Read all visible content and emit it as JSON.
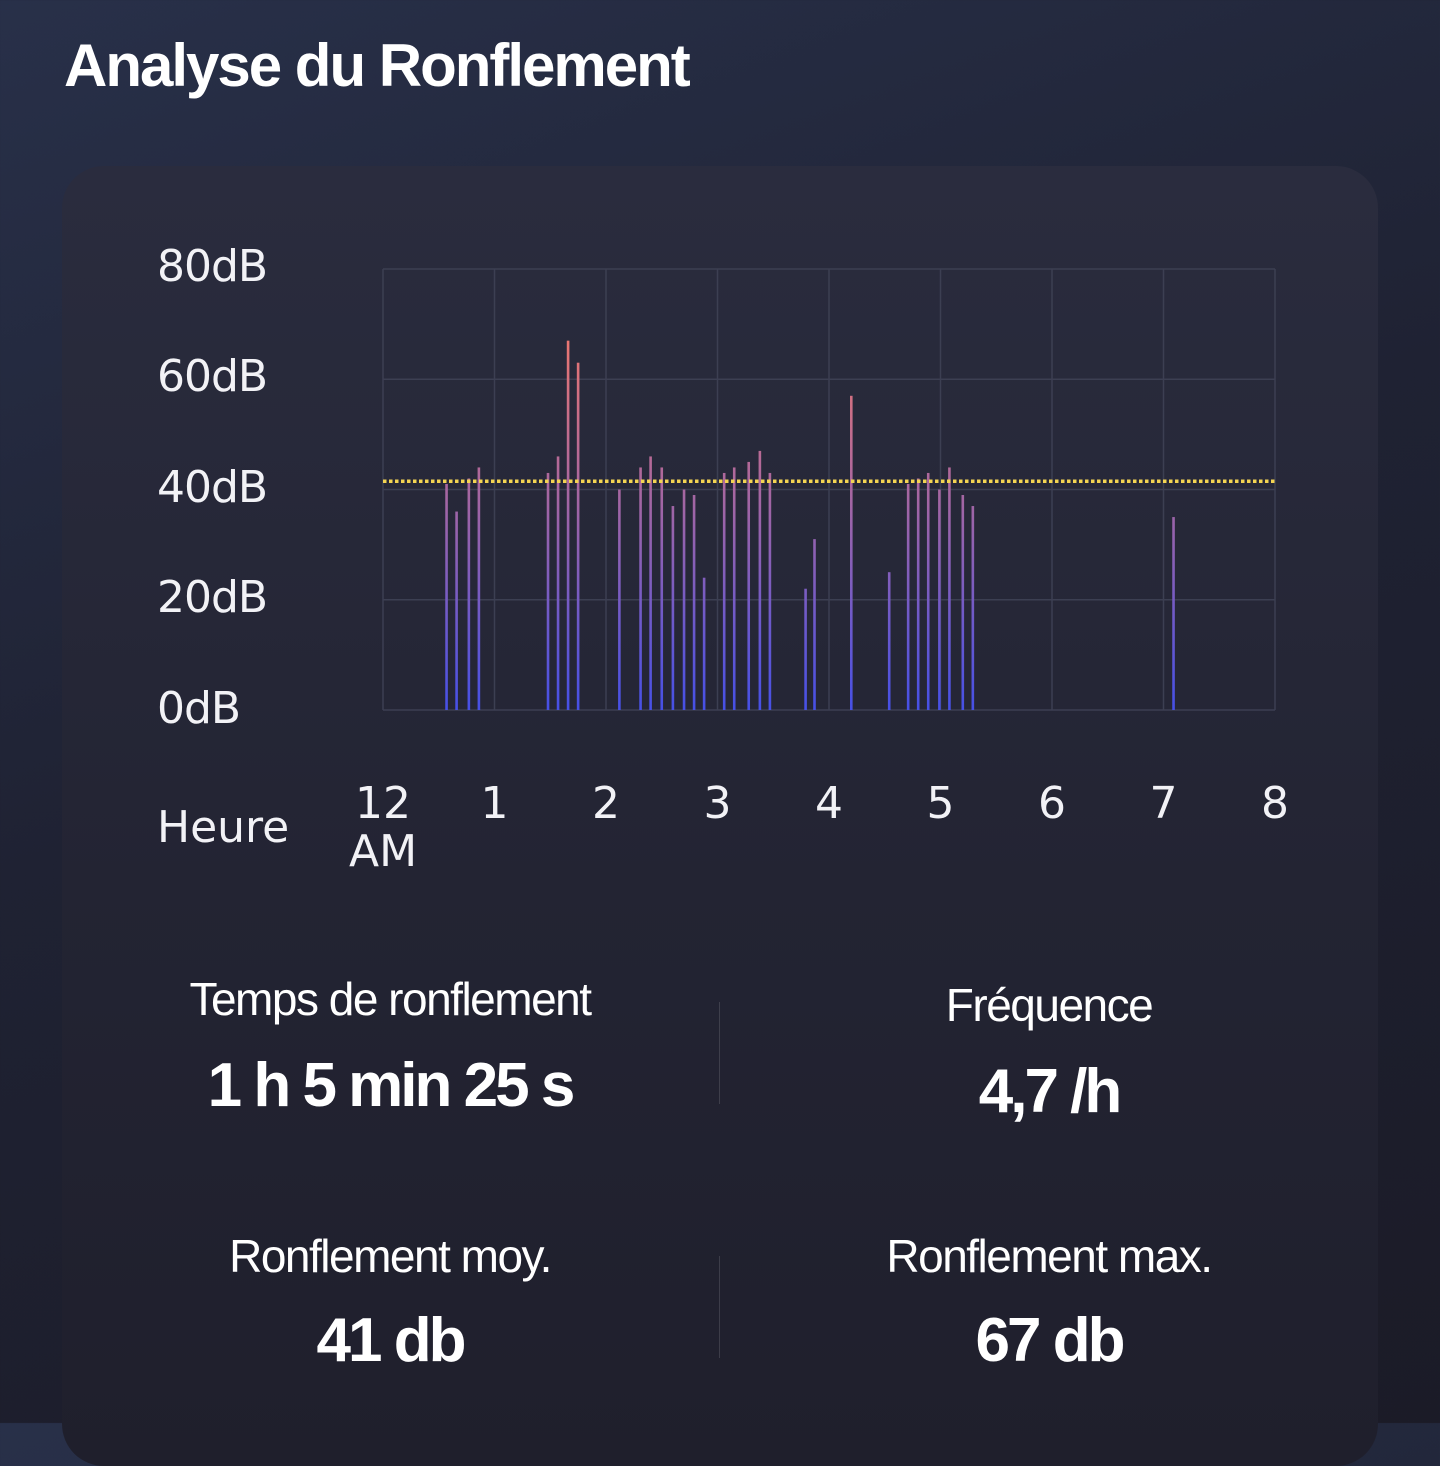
{
  "page": {
    "title": "Analyse du Ronflement"
  },
  "chart_data": {
    "type": "bar",
    "title": "",
    "xlabel": "Heure",
    "ylabel": "",
    "y_ticks": [
      "80dB",
      "60dB",
      "40dB",
      "20dB",
      "0dB"
    ],
    "ylim": [
      0,
      80
    ],
    "x_ticks": [
      {
        "hour": 0,
        "label": "12\nAM"
      },
      {
        "hour": 1,
        "label": "1"
      },
      {
        "hour": 2,
        "label": "2"
      },
      {
        "hour": 3,
        "label": "3"
      },
      {
        "hour": 4,
        "label": "4"
      },
      {
        "hour": 5,
        "label": "5"
      },
      {
        "hour": 6,
        "label": "6"
      },
      {
        "hour": 7,
        "label": "7"
      },
      {
        "hour": 8,
        "label": "8"
      }
    ],
    "xlim": [
      0,
      8
    ],
    "grid": true,
    "threshold_db": 41.5,
    "colors": {
      "bar_top": "#f0776c",
      "bar_bottom": "#4650e6",
      "threshold": "#f3d452",
      "grid": "#3c3f52"
    },
    "bars": [
      {
        "hour": 0.57,
        "db": 41
      },
      {
        "hour": 0.66,
        "db": 36
      },
      {
        "hour": 0.77,
        "db": 42
      },
      {
        "hour": 0.86,
        "db": 44
      },
      {
        "hour": 1.48,
        "db": 43
      },
      {
        "hour": 1.57,
        "db": 46
      },
      {
        "hour": 1.66,
        "db": 67
      },
      {
        "hour": 1.75,
        "db": 63
      },
      {
        "hour": 2.12,
        "db": 40
      },
      {
        "hour": 2.31,
        "db": 44
      },
      {
        "hour": 2.4,
        "db": 46
      },
      {
        "hour": 2.5,
        "db": 44
      },
      {
        "hour": 2.6,
        "db": 37
      },
      {
        "hour": 2.7,
        "db": 40
      },
      {
        "hour": 2.79,
        "db": 39
      },
      {
        "hour": 2.88,
        "db": 24
      },
      {
        "hour": 3.06,
        "db": 43
      },
      {
        "hour": 3.15,
        "db": 44
      },
      {
        "hour": 3.28,
        "db": 45
      },
      {
        "hour": 3.38,
        "db": 47
      },
      {
        "hour": 3.47,
        "db": 43
      },
      {
        "hour": 3.79,
        "db": 22
      },
      {
        "hour": 3.87,
        "db": 31
      },
      {
        "hour": 4.2,
        "db": 57
      },
      {
        "hour": 4.54,
        "db": 25
      },
      {
        "hour": 4.71,
        "db": 41
      },
      {
        "hour": 4.8,
        "db": 42
      },
      {
        "hour": 4.89,
        "db": 43
      },
      {
        "hour": 4.99,
        "db": 40
      },
      {
        "hour": 5.08,
        "db": 44
      },
      {
        "hour": 5.2,
        "db": 39
      },
      {
        "hour": 5.29,
        "db": 37
      },
      {
        "hour": 7.09,
        "db": 35
      }
    ]
  },
  "stats": {
    "snore_time": {
      "label": "Temps de ronflement",
      "value": "1 h 5 min 25 s"
    },
    "frequency": {
      "label": "Fréquence",
      "value": "4,7 /h"
    },
    "avg_snore": {
      "label": "Ronflement moy.",
      "value": "41 db"
    },
    "max_snore": {
      "label": "Ronflement max.",
      "value": "67 db"
    }
  }
}
